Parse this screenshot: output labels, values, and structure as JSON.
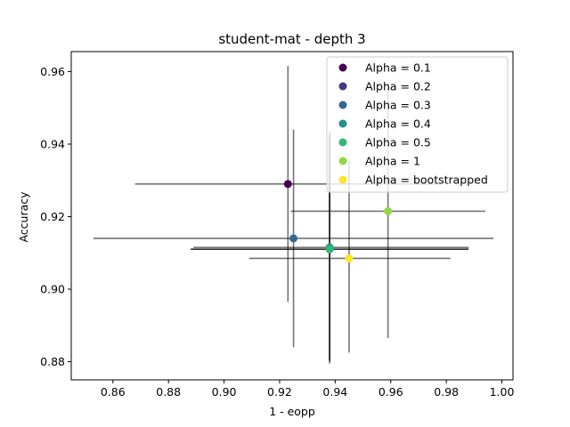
{
  "chart_data": {
    "type": "scatter",
    "title": "student-mat - depth 3",
    "xlabel": "1 - eopp",
    "ylabel": "Accuracy",
    "xlim": [
      0.845,
      1.004
    ],
    "ylim": [
      0.875,
      0.9655
    ],
    "xticks": [
      0.86,
      0.88,
      0.9,
      0.92,
      0.94,
      0.96,
      0.98,
      1.0
    ],
    "xtick_labels": [
      "0.86",
      "0.88",
      "0.90",
      "0.92",
      "0.94",
      "0.96",
      "0.98",
      "1.00"
    ],
    "yticks": [
      0.88,
      0.9,
      0.92,
      0.94,
      0.96
    ],
    "ytick_labels": [
      "0.88",
      "0.90",
      "0.92",
      "0.94",
      "0.96"
    ],
    "grid": false,
    "legend_position": "top-right",
    "series": [
      {
        "name": "Alpha = 0.1",
        "color": "#440154",
        "x": 0.923,
        "y": 0.929,
        "xerr": [
          0.868,
          0.978
        ],
        "yerr": [
          0.8965,
          0.9615
        ]
      },
      {
        "name": "Alpha = 0.2",
        "color": "#443983",
        "x": 0.938,
        "y": 0.911,
        "xerr": [
          0.888,
          0.988
        ],
        "yerr": [
          0.8795,
          0.9425
        ]
      },
      {
        "name": "Alpha = 0.3",
        "color": "#31688e",
        "x": 0.925,
        "y": 0.914,
        "xerr": [
          0.853,
          0.997
        ],
        "yerr": [
          0.884,
          0.944
        ]
      },
      {
        "name": "Alpha = 0.4",
        "color": "#21918c",
        "x": 0.938,
        "y": 0.9115,
        "xerr": [
          0.889,
          0.988
        ],
        "yerr": [
          0.88,
          0.9435
        ]
      },
      {
        "name": "Alpha = 0.5",
        "color": "#35b779",
        "x": 0.938,
        "y": 0.911,
        "xerr": [
          0.888,
          0.988
        ],
        "yerr": [
          0.8805,
          0.9425
        ]
      },
      {
        "name": "Alpha = 1",
        "color": "#90d743",
        "x": 0.959,
        "y": 0.9215,
        "xerr": [
          0.924,
          0.994
        ],
        "yerr": [
          0.8865,
          0.9565
        ]
      },
      {
        "name": "Alpha = bootstrapped",
        "color": "#fde725",
        "x": 0.945,
        "y": 0.9085,
        "xerr": [
          0.909,
          0.9815
        ],
        "yerr": [
          0.8825,
          0.9355
        ]
      }
    ]
  }
}
